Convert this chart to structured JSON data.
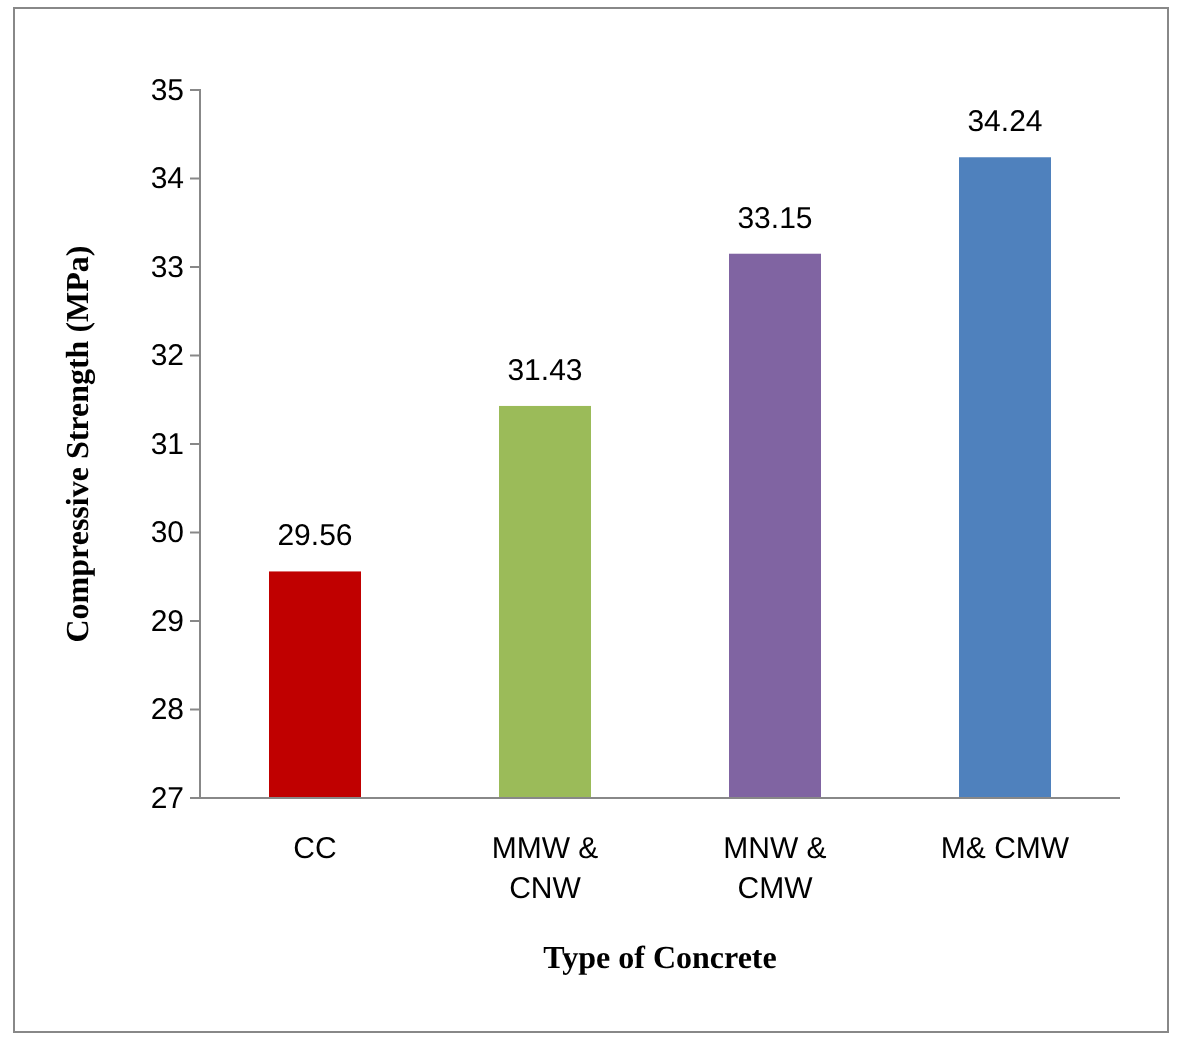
{
  "chart_data": {
    "type": "bar",
    "xlabel": "Type of Concrete",
    "ylabel": "Compressive Strength (MPa)",
    "categories": [
      "CC",
      "MMW & CNW",
      "MNW & CMW",
      "M& CMW"
    ],
    "values": [
      29.56,
      31.43,
      33.15,
      34.24
    ],
    "colors": [
      "#c00000",
      "#9bbb59",
      "#8064a2",
      "#4f81bd"
    ],
    "ylim": [
      27,
      35
    ],
    "yticks": [
      27,
      28,
      29,
      30,
      31,
      32,
      33,
      34,
      35
    ],
    "data_labels": true,
    "grid": false
  }
}
